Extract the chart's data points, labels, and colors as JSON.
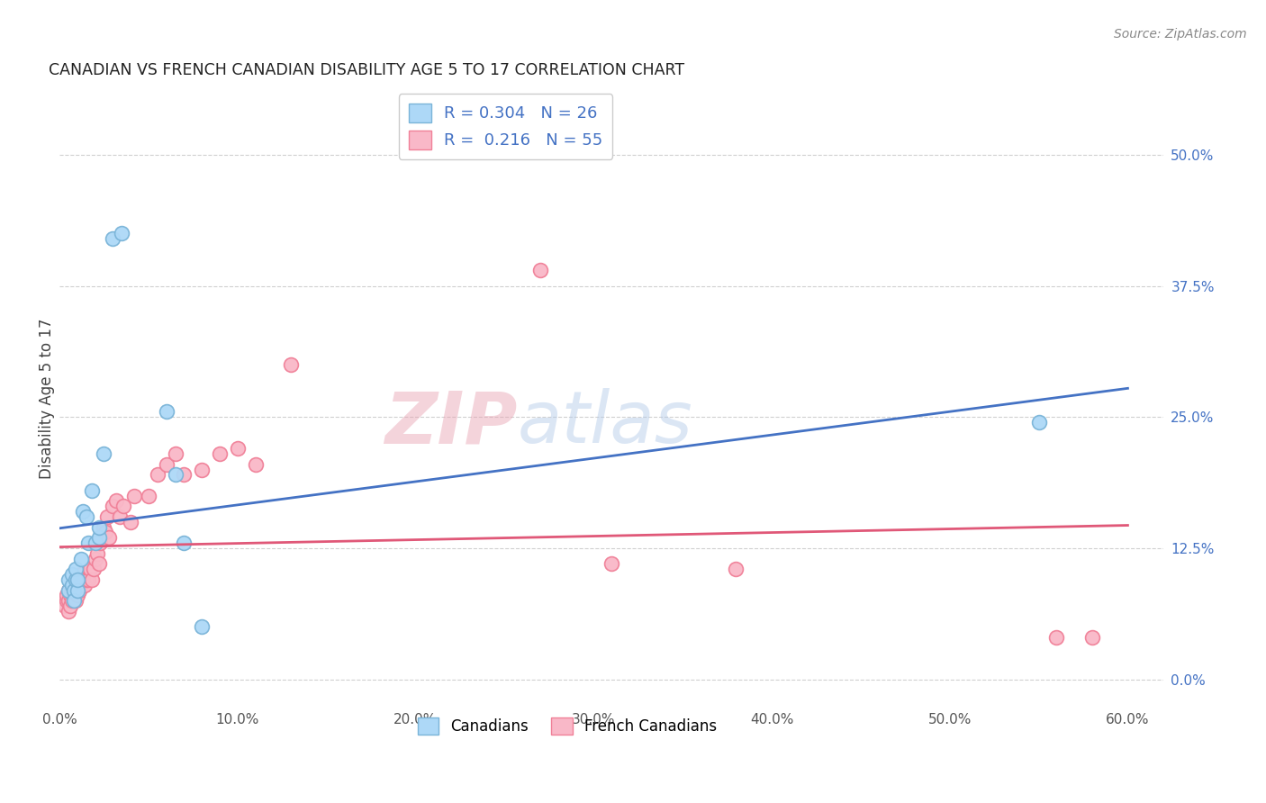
{
  "title": "CANADIAN VS FRENCH CANADIAN DISABILITY AGE 5 TO 17 CORRELATION CHART",
  "source": "Source: ZipAtlas.com",
  "ylabel": "Disability Age 5 to 17",
  "blue_R": "0.304",
  "blue_N": "26",
  "pink_R": "0.216",
  "pink_N": "55",
  "legend_label1": "Canadians",
  "legend_label2": "French Canadians",
  "blue_scatter_face": "#add8f7",
  "blue_scatter_edge": "#7ab4d8",
  "pink_scatter_face": "#f9b8c8",
  "pink_scatter_edge": "#f08098",
  "blue_line_color": "#4472c4",
  "pink_line_color": "#e05878",
  "right_tick_color": "#4472c4",
  "xlim": [
    0.0,
    0.62
  ],
  "ylim": [
    -0.025,
    0.56
  ],
  "xticks": [
    0.0,
    0.1,
    0.2,
    0.3,
    0.4,
    0.5,
    0.6
  ],
  "xtick_labels": [
    "0.0%",
    "10.0%",
    "20.0%",
    "30.0%",
    "40.0%",
    "50.0%",
    "60.0%"
  ],
  "yticks": [
    0.0,
    0.125,
    0.25,
    0.375,
    0.5
  ],
  "ytick_labels": [
    "0.0%",
    "12.5%",
    "25.0%",
    "37.5%",
    "50.0%"
  ],
  "grid_color": "#d0d0d0",
  "canadians_x": [
    0.005,
    0.005,
    0.007,
    0.007,
    0.008,
    0.008,
    0.009,
    0.009,
    0.01,
    0.01,
    0.012,
    0.013,
    0.015,
    0.016,
    0.018,
    0.02,
    0.022,
    0.022,
    0.025,
    0.03,
    0.035,
    0.06,
    0.065,
    0.07,
    0.08,
    0.55
  ],
  "canadians_y": [
    0.085,
    0.095,
    0.09,
    0.1,
    0.085,
    0.075,
    0.095,
    0.105,
    0.085,
    0.095,
    0.115,
    0.16,
    0.155,
    0.13,
    0.18,
    0.13,
    0.135,
    0.145,
    0.215,
    0.42,
    0.425,
    0.255,
    0.195,
    0.13,
    0.05,
    0.245
  ],
  "french_x": [
    0.003,
    0.004,
    0.004,
    0.005,
    0.005,
    0.005,
    0.006,
    0.006,
    0.007,
    0.007,
    0.008,
    0.008,
    0.009,
    0.009,
    0.01,
    0.01,
    0.011,
    0.011,
    0.012,
    0.013,
    0.014,
    0.015,
    0.016,
    0.017,
    0.018,
    0.019,
    0.02,
    0.021,
    0.022,
    0.023,
    0.025,
    0.026,
    0.027,
    0.028,
    0.03,
    0.032,
    0.034,
    0.036,
    0.04,
    0.042,
    0.05,
    0.055,
    0.06,
    0.065,
    0.07,
    0.08,
    0.09,
    0.1,
    0.11,
    0.13,
    0.27,
    0.31,
    0.38,
    0.56,
    0.58
  ],
  "french_y": [
    0.07,
    0.075,
    0.08,
    0.065,
    0.075,
    0.085,
    0.07,
    0.08,
    0.075,
    0.085,
    0.08,
    0.09,
    0.085,
    0.075,
    0.09,
    0.08,
    0.095,
    0.085,
    0.1,
    0.095,
    0.09,
    0.095,
    0.095,
    0.105,
    0.095,
    0.105,
    0.115,
    0.12,
    0.11,
    0.13,
    0.145,
    0.14,
    0.155,
    0.135,
    0.165,
    0.17,
    0.155,
    0.165,
    0.15,
    0.175,
    0.175,
    0.195,
    0.205,
    0.215,
    0.195,
    0.2,
    0.215,
    0.22,
    0.205,
    0.3,
    0.39,
    0.11,
    0.105,
    0.04,
    0.04
  ]
}
